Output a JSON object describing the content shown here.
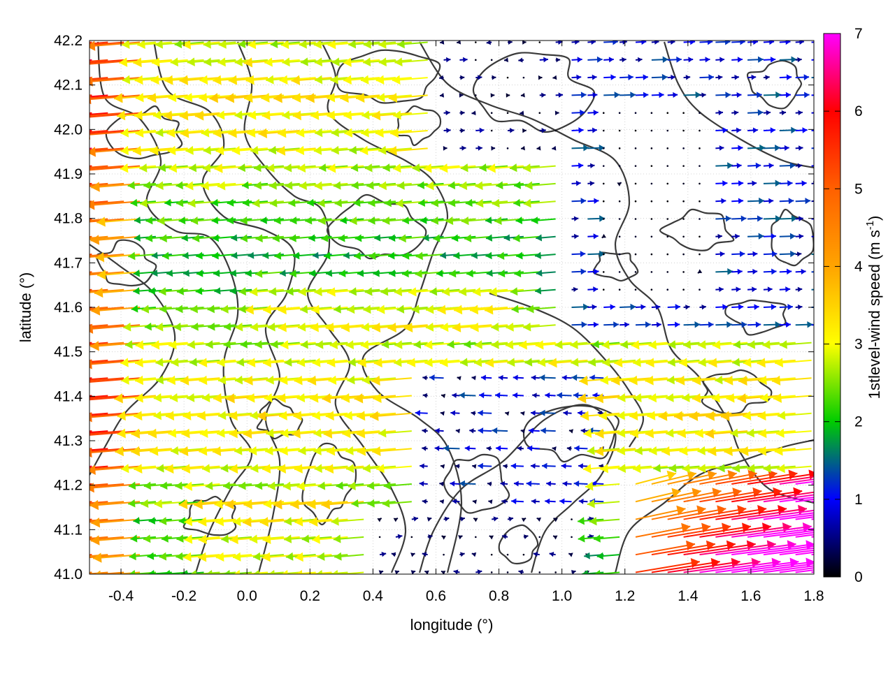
{
  "chart_data": {
    "type": "vector-field",
    "xlabel": "longitude (°)",
    "ylabel": "latitude (°)",
    "xlim": [
      -0.5,
      1.8
    ],
    "ylim": [
      41.0,
      42.2
    ],
    "xticks": [
      "-0.4",
      "-0.2",
      "0.0",
      "0.2",
      "0.4",
      "0.6",
      "0.8",
      "1.0",
      "1.2",
      "1.4",
      "1.6",
      "1.8"
    ],
    "yticks": [
      "41.0",
      "41.1",
      "41.2",
      "41.3",
      "41.4",
      "41.5",
      "41.6",
      "41.7",
      "41.8",
      "41.9",
      "42.0",
      "42.1",
      "42.2"
    ],
    "grid": true,
    "colorbar": {
      "label": "1stlevel-wind speed (m s",
      "label_superscript": "-1",
      "label_suffix": ")",
      "range": [
        0,
        7
      ],
      "ticks": [
        "0",
        "1",
        "2",
        "3",
        "4",
        "5",
        "6",
        "7"
      ],
      "colors": [
        "#000000",
        "#0000ff",
        "#00cc00",
        "#ffff00",
        "#ff7f00",
        "#ff0000",
        "#ff00ff"
      ]
    },
    "wind_pattern": {
      "dominant_direction": "westward (arrows pointing left) over most of the domain",
      "southeast_corner": "eastward strong flow 5–7 m/s near 1.3–1.8°E, 41.0–41.2°N",
      "east_region": "weak eastward flow 0.5–1.5 m/s north-east of 1.2°E",
      "west_edge": "stronger westward flow 3–5.5 m/s near -0.5°E",
      "calm_zone": "near-calm winds around 1.2–1.4°E, 41.7–42.0°N"
    },
    "contours": "dark grey terrain contour lines"
  }
}
